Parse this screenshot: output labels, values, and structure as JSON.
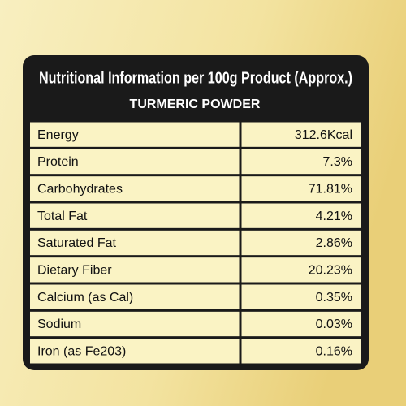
{
  "header": {
    "title": "Nutritional Information per 100g Product (Approx.)",
    "subtitle": "TURMERIC POWDER"
  },
  "table": {
    "rows": [
      [
        "Energy",
        "312.6Kcal"
      ],
      [
        "Protein",
        "7.3%"
      ],
      [
        "Carbohydrates",
        "71.81%"
      ],
      [
        "Total Fat",
        "4.21%"
      ],
      [
        "Saturated Fat",
        "2.86%"
      ],
      [
        "Dietary Fiber",
        "20.23%"
      ],
      [
        "Calcium (as Cal)",
        "0.35%"
      ],
      [
        "Sodium",
        "0.03%"
      ],
      [
        "Iron (as Fe203)",
        "0.16%"
      ]
    ]
  }
}
